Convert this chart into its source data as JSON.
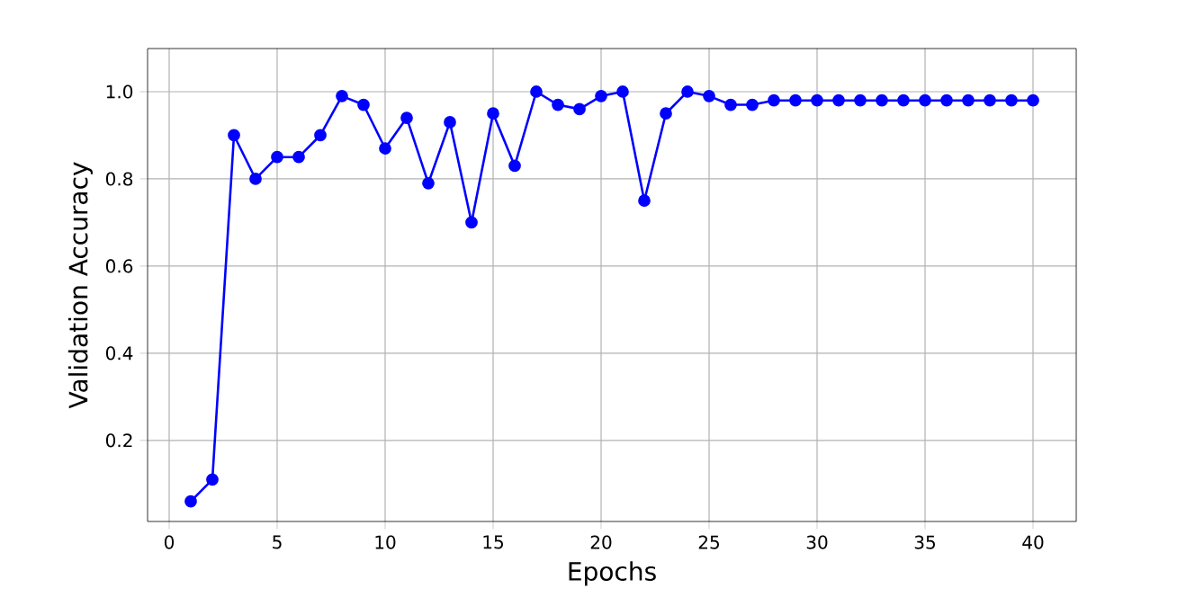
{
  "chart_data": {
    "type": "line",
    "xlabel": "Epochs",
    "ylabel": "Validation Accuracy",
    "x": [
      1,
      2,
      3,
      4,
      5,
      6,
      7,
      8,
      9,
      10,
      11,
      12,
      13,
      14,
      15,
      16,
      17,
      18,
      19,
      20,
      21,
      22,
      23,
      24,
      25,
      26,
      27,
      28,
      29,
      30,
      31,
      32,
      33,
      34,
      35,
      36,
      37,
      38,
      39,
      40
    ],
    "series": [
      {
        "color": "#0000ff",
        "values": [
          0.06,
          0.11,
          0.9,
          0.8,
          0.85,
          0.85,
          0.9,
          0.99,
          0.97,
          0.87,
          0.94,
          0.79,
          0.93,
          0.7,
          0.95,
          0.83,
          1.0,
          0.97,
          0.96,
          0.99,
          1.0,
          0.75,
          0.95,
          1.0,
          0.99,
          0.97,
          0.97,
          0.98,
          0.98,
          0.98,
          0.98,
          0.98,
          0.98,
          0.98,
          0.98,
          0.98,
          0.98,
          0.98,
          0.98,
          0.98
        ]
      }
    ],
    "xlim": [
      -1,
      42
    ],
    "ylim": [
      0.014,
      1.099
    ],
    "xticks": [
      0,
      5,
      10,
      15,
      20,
      25,
      30,
      35,
      40
    ],
    "yticks": [
      0.2,
      0.4,
      0.6,
      0.8,
      {
        "value": 1,
        "label": "1.0"
      }
    ],
    "grid": true,
    "marker": "circle",
    "line_style": "solid"
  }
}
